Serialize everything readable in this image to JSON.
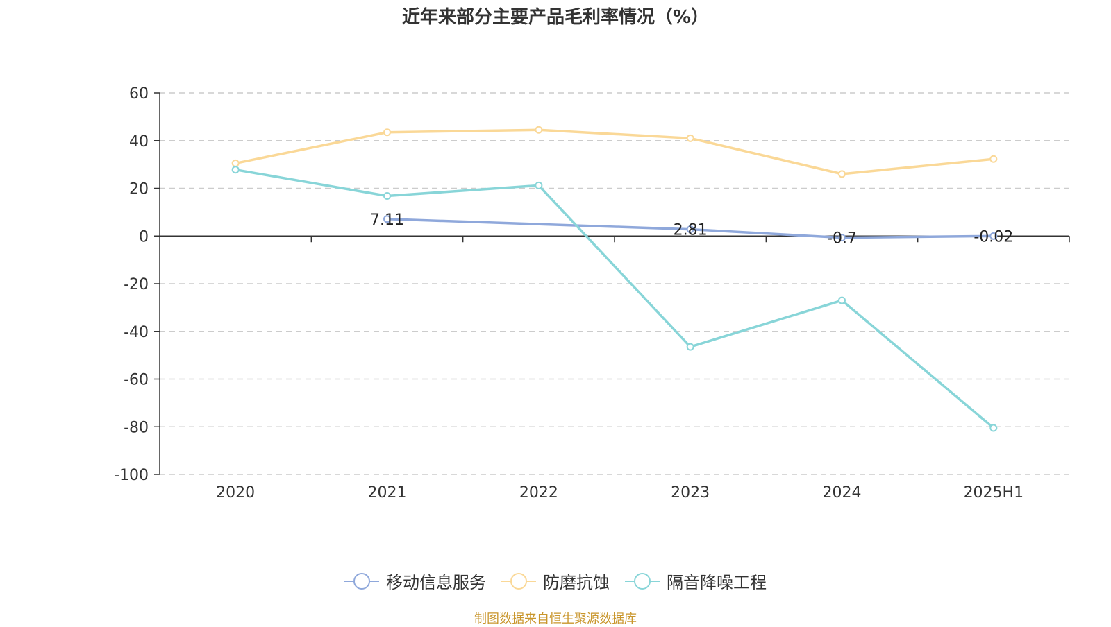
{
  "title": "近年来部分主要产品毛利率情况（%）",
  "source": "制图数据来自恒生聚源数据库",
  "chart_data": {
    "type": "line",
    "x": [
      "2020",
      "2021",
      "2022",
      "2023",
      "2024",
      "2025H1"
    ],
    "ylim": [
      -100,
      60
    ],
    "yticks": [
      60,
      40,
      20,
      0,
      -20,
      -40,
      -60,
      -80,
      -100
    ],
    "grid": true,
    "legend_position": "bottom",
    "series": [
      {
        "name": "移动信息服务",
        "color": "#8fa8db",
        "values": [
          null,
          7.11,
          null,
          2.81,
          -0.7,
          -0.02
        ],
        "labels": [
          null,
          "7.11",
          null,
          "2.81",
          "-0.7",
          "-0.02"
        ]
      },
      {
        "name": "防磨抗蚀",
        "color": "#fad897",
        "values": [
          30.5,
          43.5,
          44.5,
          41,
          26,
          32.3
        ]
      },
      {
        "name": "隔音降噪工程",
        "color": "#88d5d8",
        "values": [
          27.8,
          16.8,
          21.2,
          -46.5,
          -27,
          -80.5
        ]
      }
    ]
  }
}
